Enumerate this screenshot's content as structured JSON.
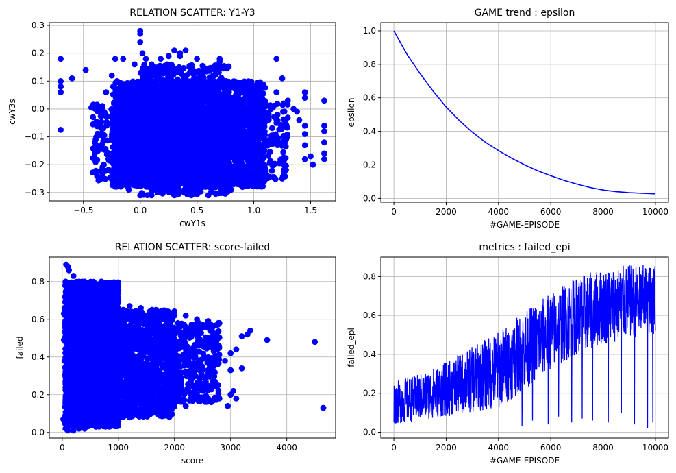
{
  "figure": {
    "background": "#ffffff",
    "grid_color": "#b0b0b0",
    "series_color": "#0000ff"
  },
  "chart_data": [
    {
      "id": "p1",
      "type": "scatter",
      "title": "RELATION SCATTER: Y1-Y3",
      "xlabel": "cwY1s",
      "ylabel": "cwY3s",
      "xlim": [
        -0.8,
        1.72
      ],
      "ylim": [
        -0.33,
        0.31
      ],
      "xticks": [
        -0.5,
        0.0,
        0.5,
        1.0,
        1.5
      ],
      "xticklabels": [
        "−0.5",
        "0.0",
        "0.5",
        "1.0",
        "1.5"
      ],
      "yticks": [
        -0.3,
        -0.2,
        -0.1,
        0.0,
        0.1,
        0.2,
        0.3
      ],
      "yticklabels": [
        "−0.3",
        "−0.2",
        "−0.1",
        "0.0",
        "0.1",
        "0.2",
        "0.3"
      ],
      "grid": true,
      "color": "#0000ff",
      "points": [
        [
          -0.7,
          0.18
        ],
        [
          -0.7,
          0.1
        ],
        [
          -0.7,
          0.08
        ],
        [
          -0.7,
          0.06
        ],
        [
          -0.7,
          -0.075
        ],
        [
          -0.6,
          0.11
        ],
        [
          -0.48,
          0.14
        ],
        [
          -0.43,
          0.005
        ],
        [
          -0.4,
          -0.14
        ],
        [
          -0.4,
          -0.16
        ],
        [
          -0.35,
          -0.09
        ],
        [
          -0.32,
          -0.2
        ],
        [
          -0.3,
          0.06
        ],
        [
          -0.28,
          -0.18
        ],
        [
          -0.25,
          0.12
        ],
        [
          -0.22,
          0.18
        ],
        [
          -0.15,
          0.18
        ],
        [
          -0.1,
          -0.26
        ],
        [
          -0.05,
          0.16
        ],
        [
          0.0,
          0.28
        ],
        [
          0.0,
          0.24
        ],
        [
          0.0,
          0.27
        ],
        [
          0.02,
          0.2
        ],
        [
          0.05,
          0.18
        ],
        [
          0.1,
          0.16
        ],
        [
          0.18,
          0.18
        ],
        [
          0.25,
          0.19
        ],
        [
          0.3,
          0.21
        ],
        [
          0.35,
          0.2
        ],
        [
          0.35,
          0.19
        ],
        [
          0.4,
          0.21
        ],
        [
          0.5,
          0.18
        ],
        [
          0.7,
          0.18
        ],
        [
          0.7,
          0.17
        ],
        [
          0.88,
          0.06
        ],
        [
          0.92,
          0.06
        ],
        [
          1.0,
          0.06
        ],
        [
          1.05,
          0.05
        ],
        [
          1.1,
          0.02
        ],
        [
          1.15,
          0.0
        ],
        [
          1.2,
          0.18
        ],
        [
          1.2,
          0.06
        ],
        [
          1.25,
          0.11
        ],
        [
          1.3,
          0.03
        ],
        [
          1.35,
          0.0
        ],
        [
          1.38,
          -0.01
        ],
        [
          1.4,
          -0.04
        ],
        [
          1.45,
          0.06
        ],
        [
          1.45,
          0.04
        ],
        [
          1.45,
          -0.06
        ],
        [
          1.45,
          -0.09
        ],
        [
          1.45,
          -0.13
        ],
        [
          1.45,
          -0.18
        ],
        [
          1.5,
          -0.17
        ],
        [
          1.52,
          -0.2
        ],
        [
          1.62,
          0.03
        ],
        [
          1.62,
          -0.06
        ],
        [
          1.62,
          -0.08
        ],
        [
          1.62,
          -0.12
        ],
        [
          1.62,
          -0.16
        ],
        [
          1.62,
          -0.18
        ],
        [
          1.2,
          -0.05
        ],
        [
          1.22,
          -0.12
        ],
        [
          1.25,
          -0.25
        ],
        [
          1.1,
          -0.22
        ],
        [
          1.0,
          -0.25
        ],
        [
          0.9,
          -0.28
        ],
        [
          0.8,
          -0.29
        ],
        [
          0.7,
          -0.3
        ],
        [
          0.6,
          -0.31
        ],
        [
          0.45,
          -0.31
        ],
        [
          0.3,
          -0.31
        ],
        [
          0.2,
          -0.3
        ],
        [
          0.1,
          -0.31
        ],
        [
          0.0,
          -0.31
        ],
        [
          -0.1,
          -0.29
        ]
      ],
      "clusters": [
        {
          "xr": [
            -0.25,
            1.1
          ],
          "yr": [
            -0.28,
            0.1
          ],
          "n": 2600
        },
        {
          "xr": [
            0.0,
            0.8
          ],
          "yr": [
            -0.31,
            0.16
          ],
          "n": 1100
        },
        {
          "xr": [
            -0.42,
            1.3
          ],
          "yr": [
            -0.26,
            0.02
          ],
          "n": 700
        }
      ]
    },
    {
      "id": "p2",
      "type": "line",
      "title": "GAME trend : epsilon",
      "xlabel": "#GAME-EPISODE",
      "ylabel": "epsilon",
      "xlim": [
        -500,
        10500
      ],
      "ylim": [
        -0.023,
        1.049
      ],
      "xticks": [
        0,
        2000,
        4000,
        6000,
        8000,
        10000
      ],
      "xticklabels": [
        "0",
        "2000",
        "4000",
        "6000",
        "8000",
        "10000"
      ],
      "yticks": [
        0.0,
        0.2,
        0.4,
        0.6,
        0.8,
        1.0
      ],
      "yticklabels": [
        "0.0",
        "0.2",
        "0.4",
        "0.6",
        "0.8",
        "1.0"
      ],
      "grid": true,
      "color": "#0000ff",
      "x": [
        0,
        500,
        1000,
        1500,
        2000,
        2500,
        3000,
        3500,
        4000,
        4500,
        5000,
        5500,
        6000,
        6500,
        7000,
        7500,
        8000,
        8500,
        9000,
        9500,
        10000
      ],
      "y": [
        1.0,
        0.86,
        0.745,
        0.64,
        0.545,
        0.465,
        0.395,
        0.335,
        0.285,
        0.24,
        0.2,
        0.165,
        0.135,
        0.108,
        0.085,
        0.065,
        0.05,
        0.04,
        0.034,
        0.03,
        0.027
      ]
    },
    {
      "id": "p3",
      "type": "scatter",
      "title": "RELATION SCATTER: score-failed",
      "xlabel": "score",
      "ylabel": "failed",
      "xlim": [
        -230,
        4870
      ],
      "ylim": [
        -0.03,
        0.93
      ],
      "xticks": [
        0,
        1000,
        2000,
        3000,
        4000
      ],
      "xticklabels": [
        "0",
        "1000",
        "2000",
        "3000",
        "4000"
      ],
      "yticks": [
        0.0,
        0.2,
        0.4,
        0.6,
        0.8
      ],
      "yticklabels": [
        "0.0",
        "0.2",
        "0.4",
        "0.6",
        "0.8"
      ],
      "grid": true,
      "color": "#0000ff",
      "points": [
        [
          70,
          0.89
        ],
        [
          100,
          0.88
        ],
        [
          120,
          0.86
        ],
        [
          60,
          0.8
        ],
        [
          30,
          0.63
        ],
        [
          40,
          0.66
        ],
        [
          20,
          0.07
        ],
        [
          40,
          0.38
        ],
        [
          30,
          0.49
        ],
        [
          60,
          0.02
        ],
        [
          100,
          0.01
        ],
        [
          200,
          0.01
        ],
        [
          300,
          0.02
        ],
        [
          400,
          0.02
        ],
        [
          600,
          0.03
        ],
        [
          800,
          0.04
        ],
        [
          1000,
          0.06
        ],
        [
          1200,
          0.08
        ],
        [
          1500,
          0.11
        ],
        [
          1800,
          0.13
        ],
        [
          2000,
          0.15
        ],
        [
          2200,
          0.14
        ],
        [
          2400,
          0.2
        ],
        [
          2600,
          0.18
        ],
        [
          2800,
          0.18
        ],
        [
          2950,
          0.14
        ],
        [
          3000,
          0.2
        ],
        [
          3050,
          0.22
        ],
        [
          3100,
          0.18
        ],
        [
          3200,
          0.34
        ],
        [
          3000,
          0.33
        ],
        [
          2900,
          0.38
        ],
        [
          3000,
          0.42
        ],
        [
          3100,
          0.44
        ],
        [
          3200,
          0.51
        ],
        [
          3300,
          0.52
        ],
        [
          3350,
          0.54
        ],
        [
          3650,
          0.49
        ],
        [
          4500,
          0.48
        ],
        [
          4650,
          0.13
        ],
        [
          2800,
          0.58
        ],
        [
          2600,
          0.59
        ],
        [
          2400,
          0.6
        ],
        [
          2200,
          0.62
        ],
        [
          2000,
          0.62
        ],
        [
          1800,
          0.64
        ],
        [
          1600,
          0.65
        ],
        [
          1400,
          0.66
        ],
        [
          1200,
          0.67
        ],
        [
          1000,
          0.7
        ],
        [
          800,
          0.72
        ],
        [
          600,
          0.75
        ],
        [
          400,
          0.78
        ],
        [
          300,
          0.8
        ],
        [
          200,
          0.83
        ],
        [
          2700,
          0.43
        ],
        [
          2500,
          0.47
        ],
        [
          2300,
          0.3
        ],
        [
          2500,
          0.25
        ]
      ],
      "clusters": [
        {
          "xr": [
            50,
            1000
          ],
          "yr": [
            0.03,
            0.8
          ],
          "n": 3200
        },
        {
          "xr": [
            700,
            2000
          ],
          "yr": [
            0.08,
            0.65
          ],
          "n": 1500
        },
        {
          "xr": [
            1900,
            2800
          ],
          "yr": [
            0.16,
            0.58
          ],
          "n": 380
        }
      ]
    },
    {
      "id": "p4",
      "type": "line",
      "title": "metrics : failed_epi",
      "xlabel": "#GAME-EPISODE",
      "ylabel": "failed_epi",
      "xlim": [
        -500,
        10500
      ],
      "ylim": [
        -0.03,
        0.9
      ],
      "xticks": [
        0,
        2000,
        4000,
        6000,
        8000,
        10000
      ],
      "xticklabels": [
        "0",
        "2000",
        "4000",
        "6000",
        "8000",
        "10000"
      ],
      "yticks": [
        0.0,
        0.2,
        0.4,
        0.6,
        0.8
      ],
      "yticklabels": [
        "0.0",
        "0.2",
        "0.4",
        "0.6",
        "0.8"
      ],
      "grid": true,
      "color": "#0000ff",
      "x_range": [
        0,
        10000
      ],
      "n_points": 1400,
      "envelope_x": [
        0,
        1000,
        2000,
        3000,
        4000,
        5000,
        6000,
        7000,
        8000,
        9000,
        10000
      ],
      "envelope_low": [
        0.04,
        0.06,
        0.08,
        0.1,
        0.12,
        0.22,
        0.32,
        0.4,
        0.45,
        0.48,
        0.5
      ],
      "envelope_high": [
        0.26,
        0.3,
        0.36,
        0.44,
        0.52,
        0.62,
        0.72,
        0.8,
        0.84,
        0.86,
        0.86
      ],
      "dips_x": [
        4900,
        5300,
        5900,
        6300,
        6800,
        7200,
        7600,
        8200,
        8700,
        9200,
        9700,
        9900
      ],
      "dips_y": [
        0.03,
        0.06,
        0.04,
        0.08,
        0.05,
        0.07,
        0.06,
        0.05,
        0.1,
        0.04,
        0.02,
        0.05
      ]
    }
  ]
}
